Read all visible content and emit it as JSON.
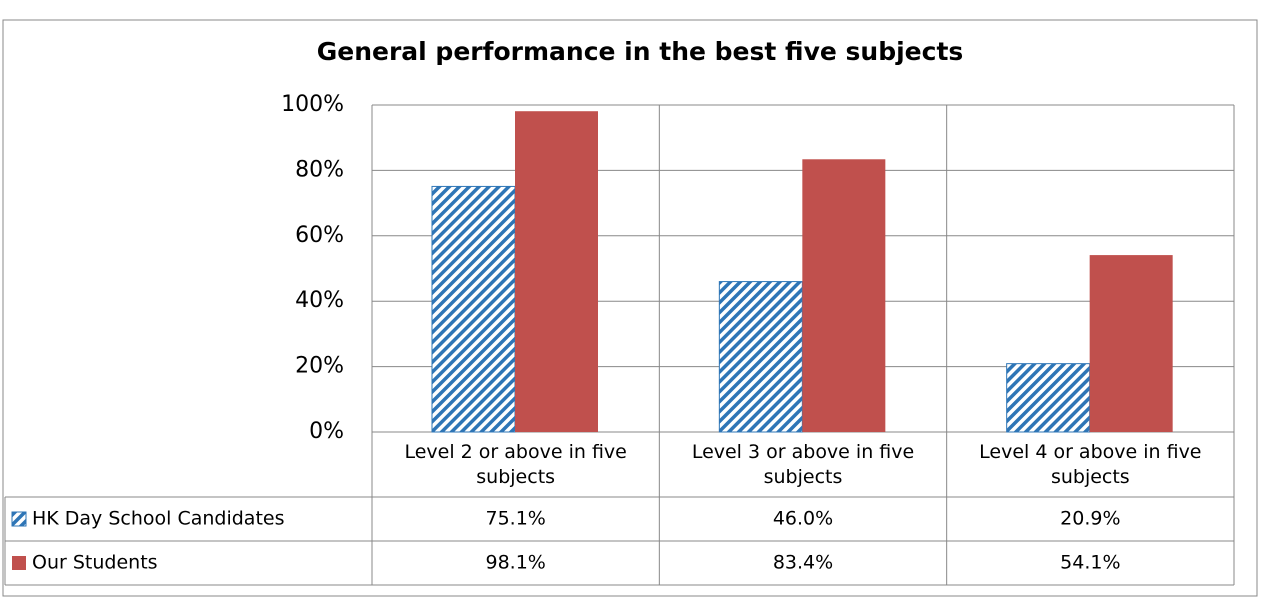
{
  "chart_data": {
    "type": "bar",
    "title": "General performance in the best  five subjects",
    "categories": [
      "Level 2 or above in five subjects",
      "Level 3 or above in five subjects",
      "Level 4 or above in five subjects"
    ],
    "series": [
      {
        "name": "HK Day School Candidates",
        "color": "#2e75b6",
        "pattern": "hatch",
        "values": [
          75.1,
          46.0,
          20.9
        ],
        "value_labels": [
          "75.1%",
          "46.0%",
          "20.9%"
        ]
      },
      {
        "name": "Our Students",
        "color": "#c0504d",
        "values": [
          98.1,
          83.4,
          54.1
        ],
        "value_labels": [
          "98.1%",
          "83.4%",
          "54.1%"
        ]
      }
    ],
    "ylim": [
      0,
      100
    ],
    "yticks": [
      {
        "value": 0,
        "label": "0%"
      },
      {
        "value": 20,
        "label": "20%"
      },
      {
        "value": 40,
        "label": "40%"
      },
      {
        "value": 60,
        "label": "60%"
      },
      {
        "value": 80,
        "label": "80%"
      },
      {
        "value": 100,
        "label": "100%"
      }
    ],
    "grid": true,
    "data_table": true
  }
}
